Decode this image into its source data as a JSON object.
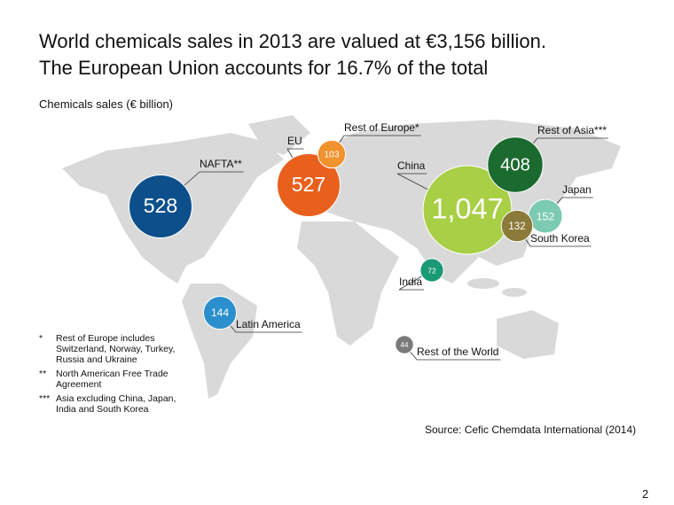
{
  "chart_data": {
    "type": "bubble",
    "title": [
      "World chemicals sales in 2013 are valued at €3,156 billion.",
      "The European Union accounts for 16.7% of the total"
    ],
    "subtitle": "Chemicals sales (€ billion)",
    "categories": [
      "NAFTA**",
      "EU",
      "Rest of Europe*",
      "China",
      "Rest of Asia***",
      "Japan",
      "South Korea",
      "India",
      "Latin America",
      "Rest of the World"
    ],
    "values": [
      528,
      527,
      103,
      1047,
      408,
      152,
      132,
      72,
      144,
      44
    ],
    "value_labels": [
      "528",
      "527",
      "103",
      "1,047",
      "408",
      "152",
      "132",
      "72",
      "144",
      "44"
    ],
    "colors": [
      "#0d4f8b",
      "#e8601c",
      "#f0922e",
      "#a8cf45",
      "#1b6a2f",
      "#7ccab1",
      "#8b7a3a",
      "#1a9a74",
      "#2b8fce",
      "#7a7a7a"
    ],
    "footnotes": [
      {
        "marker": "*",
        "text": "Rest of Europe includes Switzerland, Norway, Turkey, Russia and Ukraine"
      },
      {
        "marker": "**",
        "text": "North American Free Trade Agreement"
      },
      {
        "marker": "***",
        "text": "Asia excluding China, Japan, India and South Korea"
      }
    ],
    "source": "Source: Cefic Chemdata International (2014)",
    "page_number": "2"
  }
}
